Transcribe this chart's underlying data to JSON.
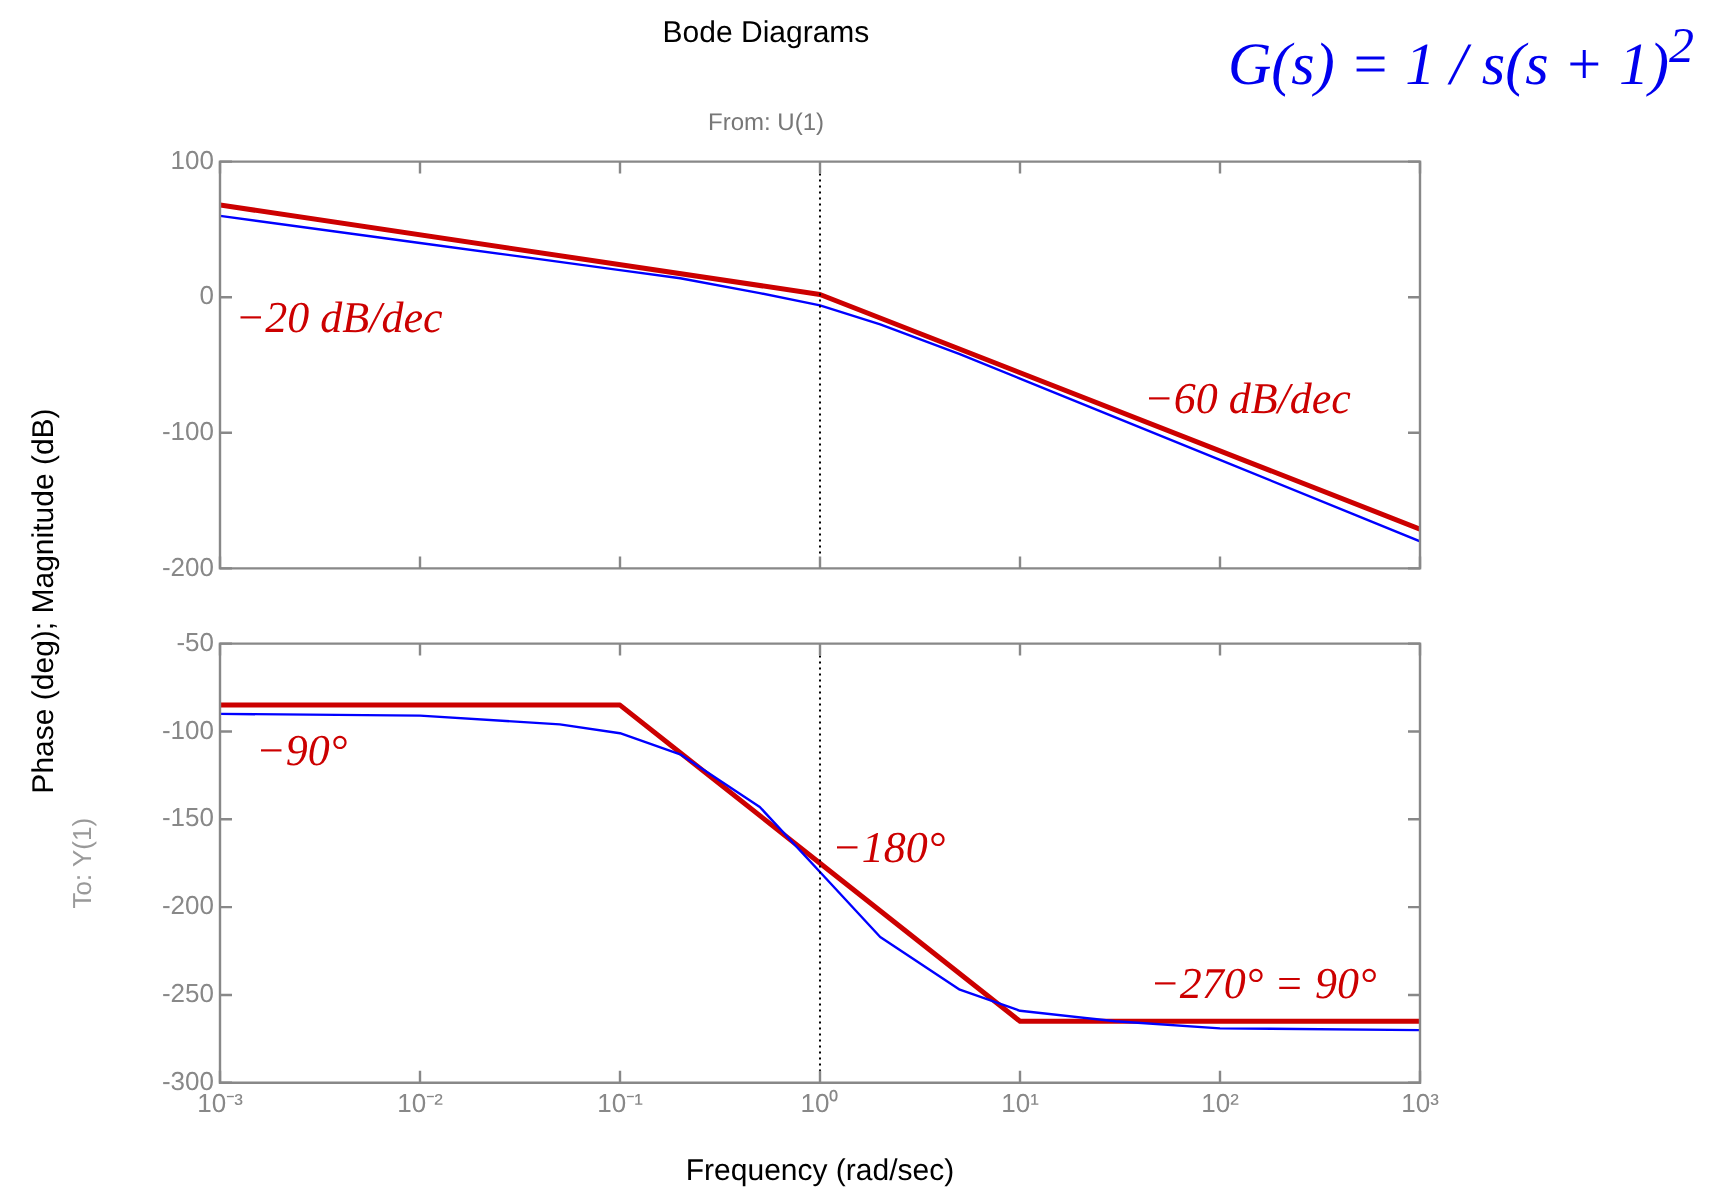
{
  "chart_data": [
    {
      "type": "line",
      "title": "Bode Diagrams",
      "subtitle": "From: U(1)",
      "ylabel": "Phase (deg); Magnitude (dB)",
      "annotations": [
        "G(s) = 1 / s(s + 1)$^{2}$",
        "−20 dB/dec",
        "−60 dB/dec"
      ],
      "series": [
        {
          "color": "#0000ff",
          "x": [
            0.001,
            0.01,
            0.1,
            0.2,
            0.5,
            1,
            2,
            5,
            10,
            100,
            1000
          ],
          "values": [
            60,
            40,
            20,
            14,
            3,
            -6,
            -20,
            -42,
            -60,
            -120,
            -180
          ]
        },
        {
          "color": "#cc0000",
          "x": [
            0.001,
            1,
            1000
          ],
          "values": [
            68,
            2,
            -171
          ]
        }
      ],
      "log": "x",
      "xlim": [
        0.001,
        1000
      ],
      "ylim": [
        -200,
        100
      ],
      "xticks": [
        {
          "value": 0.001,
          "label": null
        },
        {
          "value": 0.01,
          "label": null
        },
        {
          "value": 0.1,
          "label": null
        },
        {
          "value": 1,
          "label": null
        },
        {
          "value": 10,
          "label": null
        },
        {
          "value": 100,
          "label": null
        },
        {
          "value": 1000,
          "label": null
        }
      ],
      "yticks": [
        -200,
        -100,
        0,
        100
      ],
      "tick_labels": "y",
      "grid": false,
      "legend": false,
      "marker": "none",
      "ref_lines": [
        {
          "axis": "x",
          "value": 1,
          "color": "#000000",
          "line_style": "dotted"
        }
      ]
    },
    {
      "type": "line",
      "ylabel": "To: Y(1)",
      "xlabel": "Frequency (rad/sec)",
      "annotations": [
        "−90°",
        "−180°",
        "−270° = 90°"
      ],
      "series": [
        {
          "color": "#0000ff",
          "x": [
            0.001,
            0.01,
            0.05,
            0.1,
            0.2,
            0.5,
            1,
            2,
            5,
            10,
            30,
            100,
            1000
          ],
          "values": [
            -90,
            -91,
            -96,
            -101,
            -113,
            -143,
            -180,
            -217,
            -247,
            -259,
            -265,
            -269,
            -270
          ]
        },
        {
          "color": "#cc0000",
          "x": [
            0.001,
            0.1,
            1,
            10,
            1000
          ],
          "values": [
            -85,
            -85,
            -175,
            -265,
            -265
          ]
        }
      ],
      "log": "x",
      "xlim": [
        0.001,
        1000
      ],
      "ylim": [
        -300,
        -50
      ],
      "xticks": [
        {
          "value": 0.001,
          "label": "10⁻³"
        },
        {
          "value": 0.01,
          "label": "10⁻²"
        },
        {
          "value": 0.1,
          "label": "10⁻¹"
        },
        {
          "value": 1,
          "label": "10⁰"
        },
        {
          "value": 10,
          "label": "10¹"
        },
        {
          "value": 100,
          "label": "10²"
        },
        {
          "value": 1000,
          "label": "10³"
        }
      ],
      "yticks": [
        -300,
        -250,
        -200,
        -150,
        -100,
        -50
      ],
      "grid": false,
      "legend": false,
      "marker": "none",
      "ref_lines": [
        {
          "axis": "x",
          "value": 1,
          "color": "#000000",
          "line_style": "dotted"
        }
      ]
    }
  ]
}
